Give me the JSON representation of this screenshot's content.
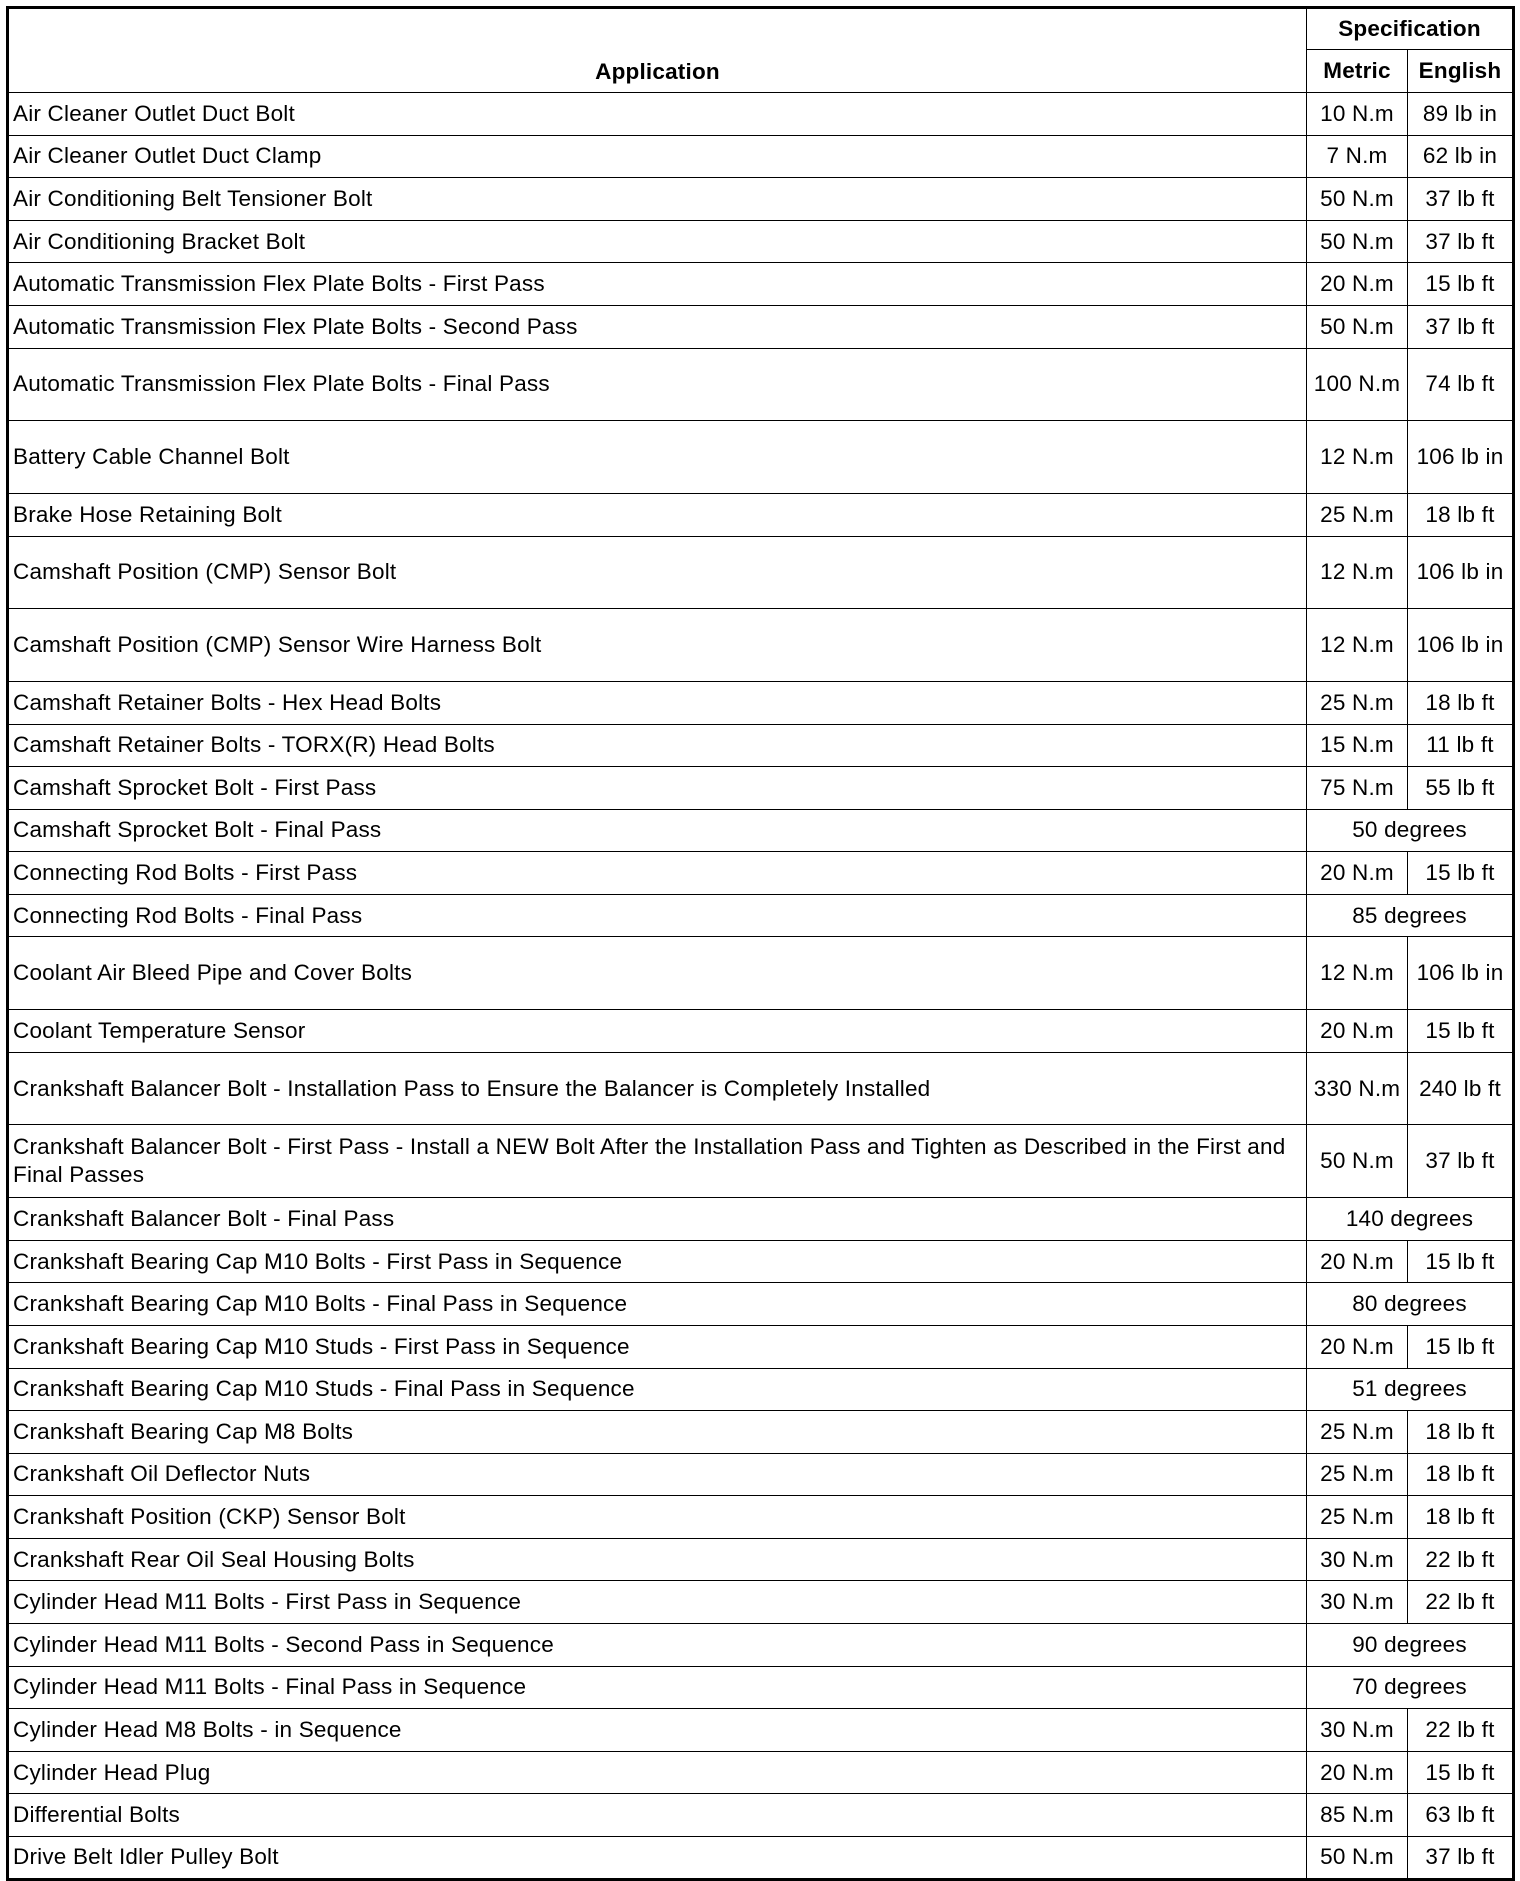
{
  "header": {
    "application": "Application",
    "specification": "Specification",
    "metric": "Metric",
    "english": "English"
  },
  "rows": [
    {
      "application": "Air Cleaner Outlet Duct Bolt",
      "metric": "10 N.m",
      "english": "89 lb in"
    },
    {
      "application": "Air Cleaner Outlet Duct Clamp",
      "metric": "7 N.m",
      "english": "62 lb in"
    },
    {
      "application": "Air Conditioning Belt Tensioner Bolt",
      "metric": "50 N.m",
      "english": "37 lb ft"
    },
    {
      "application": "Air Conditioning Bracket Bolt",
      "metric": "50 N.m",
      "english": "37 lb ft"
    },
    {
      "application": "Automatic Transmission Flex Plate Bolts - First Pass",
      "metric": "20 N.m",
      "english": "15 lb ft"
    },
    {
      "application": "Automatic Transmission Flex Plate Bolts - Second Pass",
      "metric": "50 N.m",
      "english": "37 lb ft"
    },
    {
      "application": "Automatic Transmission Flex Plate Bolts - Final Pass",
      "metric": "100 N.m",
      "english": "74 lb ft",
      "double": true
    },
    {
      "application": "Battery Cable Channel Bolt",
      "metric": "12 N.m",
      "english": "106 lb in",
      "double": true
    },
    {
      "application": "Brake Hose Retaining Bolt",
      "metric": "25 N.m",
      "english": "18 lb ft"
    },
    {
      "application": "Camshaft Position (CMP) Sensor Bolt",
      "metric": "12 N.m",
      "english": "106 lb in",
      "double": true
    },
    {
      "application": "Camshaft Position (CMP) Sensor Wire Harness Bolt",
      "metric": "12 N.m",
      "english": "106 lb in",
      "double": true
    },
    {
      "application": "Camshaft Retainer Bolts - Hex Head Bolts",
      "metric": "25 N.m",
      "english": "18 lb ft"
    },
    {
      "application": "Camshaft Retainer Bolts - TORX(R) Head Bolts",
      "metric": "15 N.m",
      "english": "11 lb ft"
    },
    {
      "application": "Camshaft Sprocket Bolt - First Pass",
      "metric": "75 N.m",
      "english": "55 lb ft"
    },
    {
      "application": "Camshaft Sprocket Bolt - Final Pass",
      "span": "50 degrees"
    },
    {
      "application": "Connecting Rod Bolts - First Pass",
      "metric": "20 N.m",
      "english": "15 lb ft"
    },
    {
      "application": "Connecting Rod Bolts - Final Pass",
      "span": "85 degrees"
    },
    {
      "application": "Coolant Air Bleed Pipe and Cover Bolts",
      "metric": "12 N.m",
      "english": "106 lb in",
      "double": true
    },
    {
      "application": "Coolant Temperature Sensor",
      "metric": "20 N.m",
      "english": "15 lb ft"
    },
    {
      "application": "Crankshaft Balancer Bolt - Installation Pass to Ensure the Balancer is Completely Installed",
      "metric": "330 N.m",
      "english": "240 lb ft",
      "double": true
    },
    {
      "application": "Crankshaft Balancer Bolt - First Pass - Install a NEW Bolt After the Installation Pass and Tighten as Described in the First and Final Passes",
      "metric": "50 N.m",
      "english": "37 lb ft",
      "double": true
    },
    {
      "application": "Crankshaft Balancer Bolt - Final Pass",
      "span": "140 degrees"
    },
    {
      "application": "Crankshaft Bearing Cap M10 Bolts - First Pass in Sequence",
      "metric": "20 N.m",
      "english": "15 lb ft"
    },
    {
      "application": "Crankshaft Bearing Cap M10 Bolts - Final Pass in Sequence",
      "span": "80 degrees"
    },
    {
      "application": "Crankshaft Bearing Cap M10 Studs - First Pass in Sequence",
      "metric": "20 N.m",
      "english": "15 lb ft"
    },
    {
      "application": "Crankshaft Bearing Cap M10 Studs - Final Pass in Sequence",
      "span": "51 degrees"
    },
    {
      "application": "Crankshaft Bearing Cap M8 Bolts",
      "metric": "25 N.m",
      "english": "18 lb ft"
    },
    {
      "application": "Crankshaft Oil Deflector Nuts",
      "metric": "25 N.m",
      "english": "18 lb ft"
    },
    {
      "application": "Crankshaft Position (CKP) Sensor Bolt",
      "metric": "25 N.m",
      "english": "18 lb ft"
    },
    {
      "application": "Crankshaft Rear Oil Seal Housing Bolts",
      "metric": "30 N.m",
      "english": "22 lb ft"
    },
    {
      "application": "Cylinder Head M11 Bolts - First Pass in Sequence",
      "metric": "30 N.m",
      "english": "22 lb ft"
    },
    {
      "application": "Cylinder Head M11 Bolts - Second Pass in Sequence",
      "span": "90 degrees"
    },
    {
      "application": "Cylinder Head M11 Bolts - Final Pass in Sequence",
      "span": "70 degrees"
    },
    {
      "application": "Cylinder Head M8 Bolts - in Sequence",
      "metric": "30 N.m",
      "english": "22 lb ft"
    },
    {
      "application": "Cylinder Head Plug",
      "metric": "20 N.m",
      "english": "15 lb ft"
    },
    {
      "application": "Differential Bolts",
      "metric": "85 N.m",
      "english": "63 lb ft"
    },
    {
      "application": "Drive Belt Idler Pulley Bolt",
      "metric": "50 N.m",
      "english": "37 lb ft"
    }
  ]
}
